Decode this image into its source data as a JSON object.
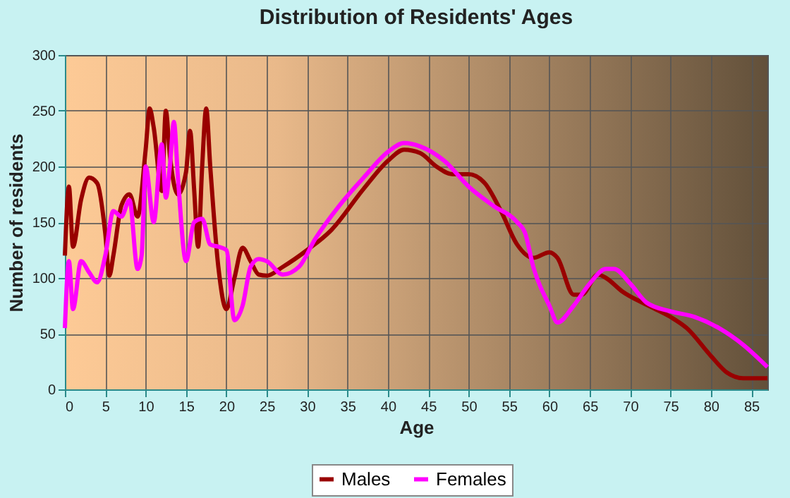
{
  "chart_data": {
    "type": "line",
    "title": "Distribution of Residents' Ages",
    "xlabel": "Age",
    "ylabel": "Number of residents",
    "xlim": [
      0,
      87
    ],
    "xticks": [
      0,
      5,
      10,
      15,
      20,
      25,
      30,
      35,
      40,
      45,
      50,
      55,
      60,
      65,
      70,
      75,
      80,
      85
    ],
    "ylim": [
      0,
      300
    ],
    "yticks": [
      0,
      50,
      100,
      150,
      200,
      250,
      300
    ],
    "grid": true,
    "legend": "bottom",
    "line_style": "solid",
    "marker": "none",
    "series": [
      {
        "name": "Males",
        "color": "#990000",
        "x": [
          0,
          0.5,
          1,
          2,
          3,
          4,
          5,
          5.5,
          6,
          7,
          8,
          9,
          10,
          10.5,
          11,
          12,
          12.5,
          13,
          14,
          15,
          15.5,
          16,
          16.5,
          17,
          17.5,
          18,
          19,
          20,
          21,
          22,
          23,
          24,
          25,
          27,
          30,
          33,
          37,
          40,
          42,
          44,
          46,
          48,
          50,
          52,
          54,
          56,
          58,
          60,
          61,
          63,
          64,
          66,
          67,
          69,
          72,
          75,
          77,
          80,
          82,
          84,
          87
        ],
        "values": [
          120,
          182,
          128,
          170,
          190,
          185,
          140,
          102,
          120,
          165,
          175,
          155,
          215,
          252,
          235,
          178,
          250,
          210,
          175,
          195,
          232,
          180,
          128,
          200,
          252,
          200,
          110,
          72,
          100,
          127,
          115,
          103,
          102,
          110,
          125,
          143,
          180,
          205,
          215,
          212,
          200,
          193,
          193,
          185,
          160,
          130,
          118,
          123,
          118,
          85,
          85,
          103,
          100,
          88,
          76,
          65,
          55,
          30,
          15,
          10,
          10
        ]
      },
      {
        "name": "Females",
        "color": "#ff00ff",
        "x": [
          0,
          0.5,
          1,
          2,
          3,
          4,
          5,
          6,
          7,
          8,
          9,
          9.5,
          10,
          11,
          12,
          12.5,
          13,
          13.5,
          14,
          15,
          16,
          17,
          18,
          19,
          20,
          21,
          22,
          23,
          24,
          25,
          27,
          29,
          31,
          34,
          37,
          40,
          42,
          44,
          47,
          50,
          53,
          56,
          57,
          58,
          60,
          61,
          63,
          65,
          67,
          68,
          70,
          72,
          75,
          78,
          81,
          84,
          87
        ],
        "values": [
          55,
          115,
          72,
          115,
          105,
          96,
          120,
          160,
          155,
          170,
          108,
          120,
          200,
          150,
          220,
          172,
          200,
          240,
          190,
          115,
          150,
          153,
          130,
          128,
          125,
          62,
          75,
          110,
          117,
          115,
          103,
          110,
          135,
          165,
          190,
          213,
          221,
          218,
          205,
          182,
          165,
          150,
          140,
          110,
          75,
          60,
          75,
          95,
          108,
          108,
          95,
          78,
          70,
          65,
          55,
          40,
          20
        ]
      }
    ]
  }
}
